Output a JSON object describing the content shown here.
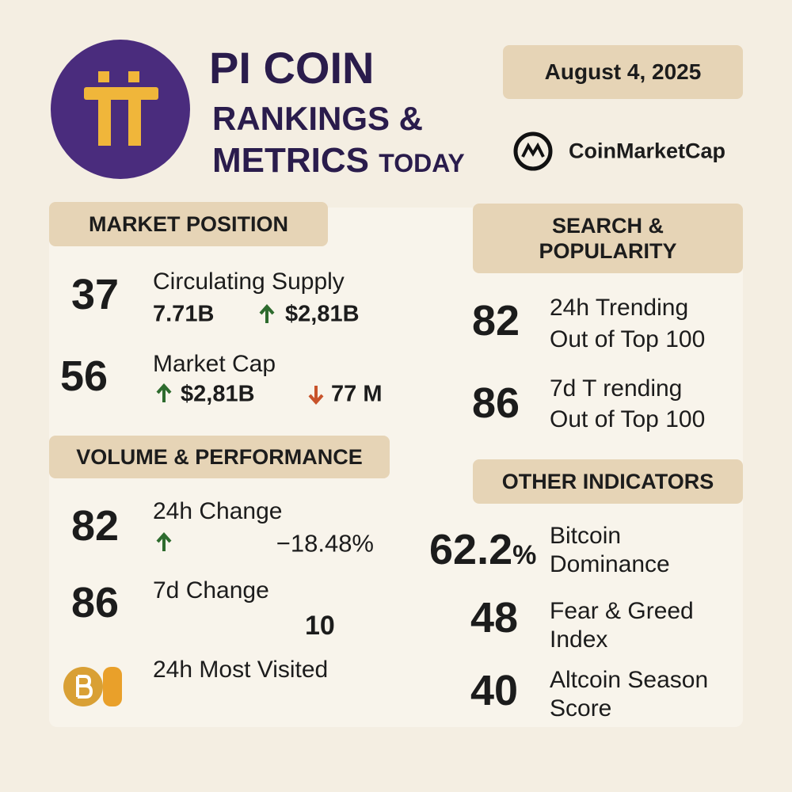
{
  "header": {
    "title": "PI COIN",
    "subtitle_line1": "RANKINGS &",
    "subtitle_line2": "METRICS",
    "subtitle_suffix": "TODAY",
    "date": "August 4, 2025",
    "source": "CoinMarketCap"
  },
  "market_position": {
    "title": "MARKET POSITION",
    "items": [
      {
        "rank": "37",
        "label": "Circulating Supply",
        "supply": "7.71B",
        "change": "$2,81B"
      },
      {
        "rank": "56",
        "label": "Market Cap",
        "up": "$2,81B",
        "down": "77 M"
      }
    ]
  },
  "volume_performance": {
    "title": "VOLUME & PERFORMANCE",
    "items": [
      {
        "rank": "82",
        "label": "24h Change",
        "change": "−18.48%"
      },
      {
        "rank": "86",
        "label": "7d Change",
        "value": "10"
      },
      {
        "label": "24h Most Visited"
      }
    ]
  },
  "search_popularity": {
    "title_lines": [
      "SEARCH &",
      "POPULARITY"
    ],
    "items": [
      {
        "rank": "82",
        "label_lines": [
          "24h Trending",
          "Out of Top 100"
        ]
      },
      {
        "rank": "86",
        "label_lines": [
          "7d T rending",
          "Out of Top 100"
        ]
      }
    ]
  },
  "other_indicators": {
    "title": "OTHER INDICATORS",
    "items": [
      {
        "rank": "62.2",
        "unit": "%",
        "label_lines": [
          "Bitcoin",
          "Dominance"
        ]
      },
      {
        "rank": "48",
        "label_lines": [
          "Fear & Greed",
          "Index"
        ]
      },
      {
        "rank": "40",
        "label_lines": [
          "Altcoin Season",
          "Score"
        ]
      }
    ]
  }
}
